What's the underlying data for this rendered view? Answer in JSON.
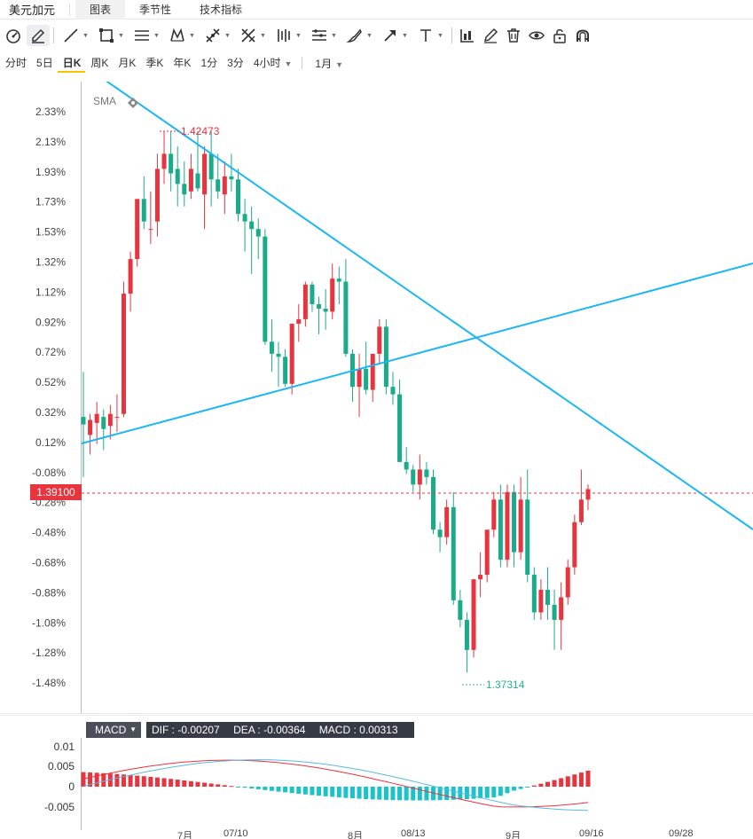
{
  "header": {
    "pair": "美元加元",
    "tabs": [
      {
        "label": "图表",
        "active": true
      },
      {
        "label": "季节性",
        "active": false
      },
      {
        "label": "技术指标",
        "active": false
      }
    ]
  },
  "toolbar": {
    "icons": [
      "speedometer-icon",
      "pencil-square-icon",
      "line-icon",
      "rectangle-icon",
      "parallel-lines-icon",
      "pattern-icon",
      "fork-icon",
      "scissors-icon",
      "bars-icon",
      "fib-icon",
      "brush-icon",
      "arrow-icon",
      "text-icon",
      "chart-stats-icon",
      "pencil-icon",
      "trash-icon",
      "eye-icon",
      "unlock-icon",
      "magnet-icon"
    ]
  },
  "periods": {
    "items": [
      {
        "label": "分时",
        "active": false
      },
      {
        "label": "5日",
        "active": false
      },
      {
        "label": "日K",
        "active": true
      },
      {
        "label": "周K",
        "active": false
      },
      {
        "label": "月K",
        "active": false
      },
      {
        "label": "季K",
        "active": false
      },
      {
        "label": "年K",
        "active": false
      },
      {
        "label": "1分",
        "active": false
      },
      {
        "label": "3分",
        "active": false
      },
      {
        "label": "4小时",
        "active": false
      }
    ],
    "range_label": "1月"
  },
  "chart_data": {
    "type": "candlestick",
    "indicator_label": "SMA",
    "y_axis_labels": [
      "2.33%",
      "2.13%",
      "1.93%",
      "1.73%",
      "1.53%",
      "1.32%",
      "1.12%",
      "0.92%",
      "0.72%",
      "0.52%",
      "0.32%",
      "0.12%",
      "-0.08%",
      "-0.28%",
      "-0.48%",
      "-0.68%",
      "-0.88%",
      "-1.08%",
      "-1.28%",
      "-1.48%"
    ],
    "current_price": "1.39100",
    "high_marker": "1.42473",
    "low_marker": "1.37314",
    "candles_pct": [
      [
        0.3,
        0.6,
        -0.1,
        0.25
      ],
      [
        0.18,
        0.32,
        0.05,
        0.28
      ],
      [
        0.26,
        0.4,
        0.12,
        0.32
      ],
      [
        0.3,
        0.35,
        0.08,
        0.22
      ],
      [
        0.24,
        0.38,
        0.15,
        0.32
      ],
      [
        0.3,
        0.45,
        0.2,
        0.3
      ],
      [
        0.32,
        1.2,
        0.3,
        1.12
      ],
      [
        1.12,
        1.4,
        1.0,
        1.35
      ],
      [
        1.35,
        1.65,
        1.3,
        1.75
      ],
      [
        1.75,
        1.9,
        1.55,
        1.6
      ],
      [
        1.55,
        1.8,
        1.45,
        1.55
      ],
      [
        1.6,
        2.05,
        1.5,
        1.95
      ],
      [
        1.95,
        2.2,
        1.85,
        2.05
      ],
      [
        2.05,
        2.2,
        1.8,
        1.92
      ],
      [
        1.95,
        2.1,
        1.7,
        1.85
      ],
      [
        1.85,
        2.0,
        1.7,
        1.78
      ],
      [
        1.8,
        2.05,
        1.75,
        1.95
      ],
      [
        1.92,
        2.2,
        1.8,
        1.82
      ],
      [
        1.78,
        2.1,
        1.55,
        2.05
      ],
      [
        2.05,
        2.2,
        1.7,
        1.88
      ],
      [
        1.88,
        2.05,
        1.75,
        1.8
      ],
      [
        1.78,
        2.0,
        1.65,
        1.9
      ],
      [
        1.9,
        2.05,
        1.8,
        1.88
      ],
      [
        1.88,
        1.95,
        1.6,
        1.65
      ],
      [
        1.65,
        1.75,
        1.4,
        1.6
      ],
      [
        1.6,
        1.7,
        1.25,
        1.55
      ],
      [
        1.55,
        1.62,
        1.35,
        1.5
      ],
      [
        1.5,
        1.55,
        0.78,
        0.8
      ],
      [
        0.8,
        0.95,
        0.6,
        0.72
      ],
      [
        0.72,
        0.8,
        0.5,
        0.7
      ],
      [
        0.7,
        0.75,
        0.5,
        0.52
      ],
      [
        0.52,
        0.9,
        0.45,
        0.92
      ],
      [
        0.92,
        1.05,
        0.8,
        0.95
      ],
      [
        0.95,
        1.2,
        0.9,
        1.18
      ],
      [
        1.18,
        1.2,
        1.0,
        1.05
      ],
      [
        1.05,
        1.1,
        0.85,
        1.02
      ],
      [
        1.02,
        1.15,
        0.88,
        1.0
      ],
      [
        1.0,
        1.32,
        0.95,
        1.22
      ],
      [
        1.22,
        1.3,
        1.05,
        1.2
      ],
      [
        1.2,
        1.35,
        0.7,
        0.72
      ],
      [
        0.72,
        0.75,
        0.4,
        0.5
      ],
      [
        0.5,
        0.72,
        0.3,
        0.62
      ],
      [
        0.62,
        0.8,
        0.45,
        0.48
      ],
      [
        0.48,
        0.6,
        0.4,
        0.72
      ],
      [
        0.72,
        0.95,
        0.65,
        0.9
      ],
      [
        0.9,
        0.95,
        0.45,
        0.5
      ],
      [
        0.5,
        0.6,
        0.38,
        0.45
      ],
      [
        0.45,
        0.55,
        0.05,
        0.0
      ],
      [
        0.0,
        0.1,
        -0.08,
        -0.05
      ],
      [
        -0.05,
        -0.02,
        -0.2,
        -0.15
      ],
      [
        -0.15,
        0.05,
        -0.25,
        -0.05
      ],
      [
        -0.05,
        0.0,
        -0.15,
        -0.1
      ],
      [
        -0.1,
        -0.05,
        -0.48,
        -0.45
      ],
      [
        -0.45,
        -0.4,
        -0.6,
        -0.5
      ],
      [
        -0.5,
        -0.25,
        -0.55,
        -0.3
      ],
      [
        -0.3,
        -0.2,
        -0.95,
        -0.92
      ],
      [
        -0.92,
        -0.85,
        -1.1,
        -1.05
      ],
      [
        -1.05,
        -1.0,
        -1.4,
        -1.25
      ],
      [
        -1.25,
        -0.8,
        -1.3,
        -0.78
      ],
      [
        -0.78,
        -0.6,
        -0.9,
        -0.75
      ],
      [
        -0.75,
        -0.5,
        -0.8,
        -0.45
      ],
      [
        -0.45,
        -0.2,
        -0.5,
        -0.25
      ],
      [
        -0.25,
        -0.15,
        -0.7,
        -0.65
      ],
      [
        -0.65,
        -0.15,
        -0.7,
        -0.2
      ],
      [
        -0.2,
        -0.15,
        -0.7,
        -0.6
      ],
      [
        -0.6,
        -0.1,
        -0.65,
        -0.25
      ],
      [
        -0.25,
        -0.05,
        -0.8,
        -0.75
      ],
      [
        -0.75,
        -0.7,
        -1.05,
        -1.0
      ],
      [
        -1.0,
        -0.78,
        -1.05,
        -0.85
      ],
      [
        -0.85,
        -0.7,
        -1.05,
        -0.95
      ],
      [
        -0.95,
        -0.85,
        -1.25,
        -1.05
      ],
      [
        -1.05,
        -0.8,
        -1.25,
        -0.9
      ],
      [
        -0.9,
        -0.65,
        -0.95,
        -0.7
      ],
      [
        -0.7,
        -0.35,
        -0.75,
        -0.4
      ],
      [
        -0.4,
        -0.05,
        -0.42,
        -0.25
      ],
      [
        -0.25,
        -0.15,
        -0.32,
        -0.18
      ]
    ],
    "macd": {
      "label": "MACD",
      "dif": "-0.00207",
      "dea": "-0.00364",
      "macd": "0.00313",
      "y_axis_labels": [
        "0.01",
        "0.005",
        "0",
        "-0.005"
      ]
    },
    "x_axis_labels": [
      "7月",
      "07/10",
      "8月",
      "08/13",
      "9月",
      "09/16",
      "09/28"
    ]
  }
}
